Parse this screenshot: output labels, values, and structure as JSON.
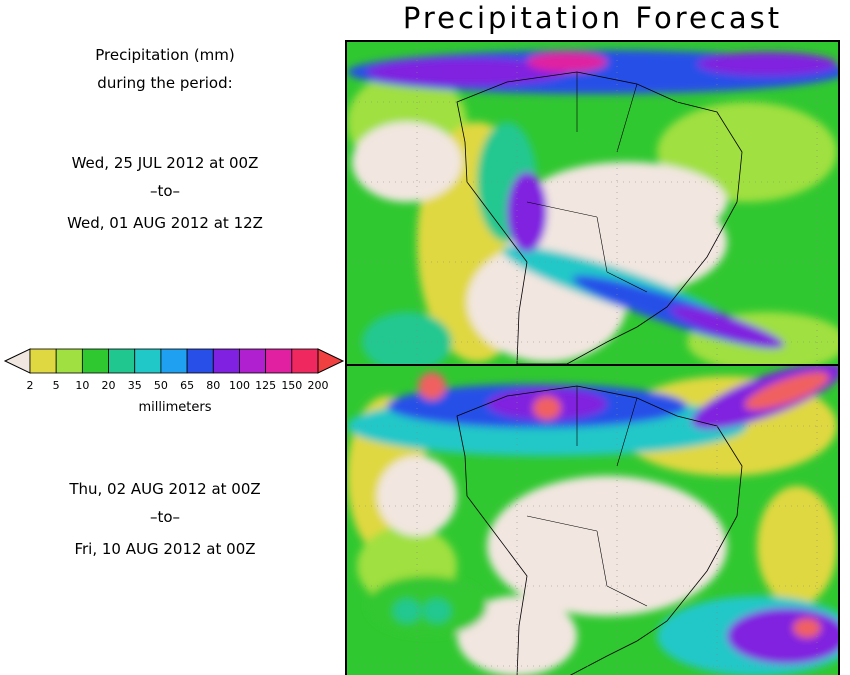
{
  "title": "Precipitation Forecast",
  "intro": {
    "line1": "Precipitation (mm)",
    "line2": "during the period:"
  },
  "period1": {
    "start": "Wed, 25 JUL 2012 at 00Z",
    "sep": "–to–",
    "end": "Wed, 01 AUG 2012 at 12Z"
  },
  "period2": {
    "start": "Thu, 02 AUG 2012 at 00Z",
    "sep": "–to–",
    "end": "Fri, 10 AUG 2012 at 00Z"
  },
  "legend": {
    "unit": "millimeters",
    "ticks": [
      "2",
      "5",
      "10",
      "20",
      "35",
      "50",
      "65",
      "80",
      "100",
      "125",
      "150",
      "200"
    ],
    "colors": [
      "#e8e8a0",
      "#e0d840",
      "#a0e040",
      "#30c830",
      "#20c890",
      "#20c8c8",
      "#20a0f0",
      "#2850e8",
      "#8020e0",
      "#b020d0",
      "#e020a0",
      "#f02860",
      "#f06060"
    ],
    "below_color": "#f0e8e0",
    "above_color": "#f04040"
  },
  "map_colors": {
    "land_dry": "#f2e6e0",
    "ocean_base": "#30c830",
    "light_yellow": "#e0d840",
    "pale_green": "#a0e040",
    "teal": "#20c890",
    "cyan": "#20c8c8",
    "blue": "#2850e8",
    "purple": "#8020e0",
    "magenta": "#b020d0",
    "pink": "#e020a0",
    "red": "#f06060"
  }
}
